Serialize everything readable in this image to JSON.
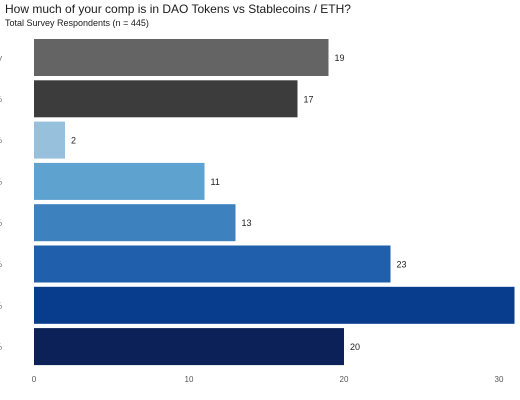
{
  "chart_data": {
    "type": "bar",
    "orientation": "horizontal",
    "title": "How much of your comp is in DAO Tokens vs Stablecoins / ETH?",
    "subtitle": "Total Survey Respondents (n = 445)",
    "category_labels_visible": [
      "y",
      "%",
      "%",
      "%",
      "%",
      "%",
      "%",
      "%"
    ],
    "values": [
      19,
      17,
      2,
      11,
      13,
      23,
      31,
      20
    ],
    "data_labels": [
      "19",
      "17",
      "2",
      "11",
      "13",
      "23",
      "",
      "20"
    ],
    "colors": [
      "#646464",
      "#3c3c3c",
      "#96c0dc",
      "#5ea2d0",
      "#3d82bf",
      "#1f5fab",
      "#083d8e",
      "#0c2158"
    ],
    "xlim": [
      0,
      31
    ],
    "x_ticks": [
      0,
      10,
      20,
      30
    ],
    "grid": false,
    "legend": "none"
  }
}
